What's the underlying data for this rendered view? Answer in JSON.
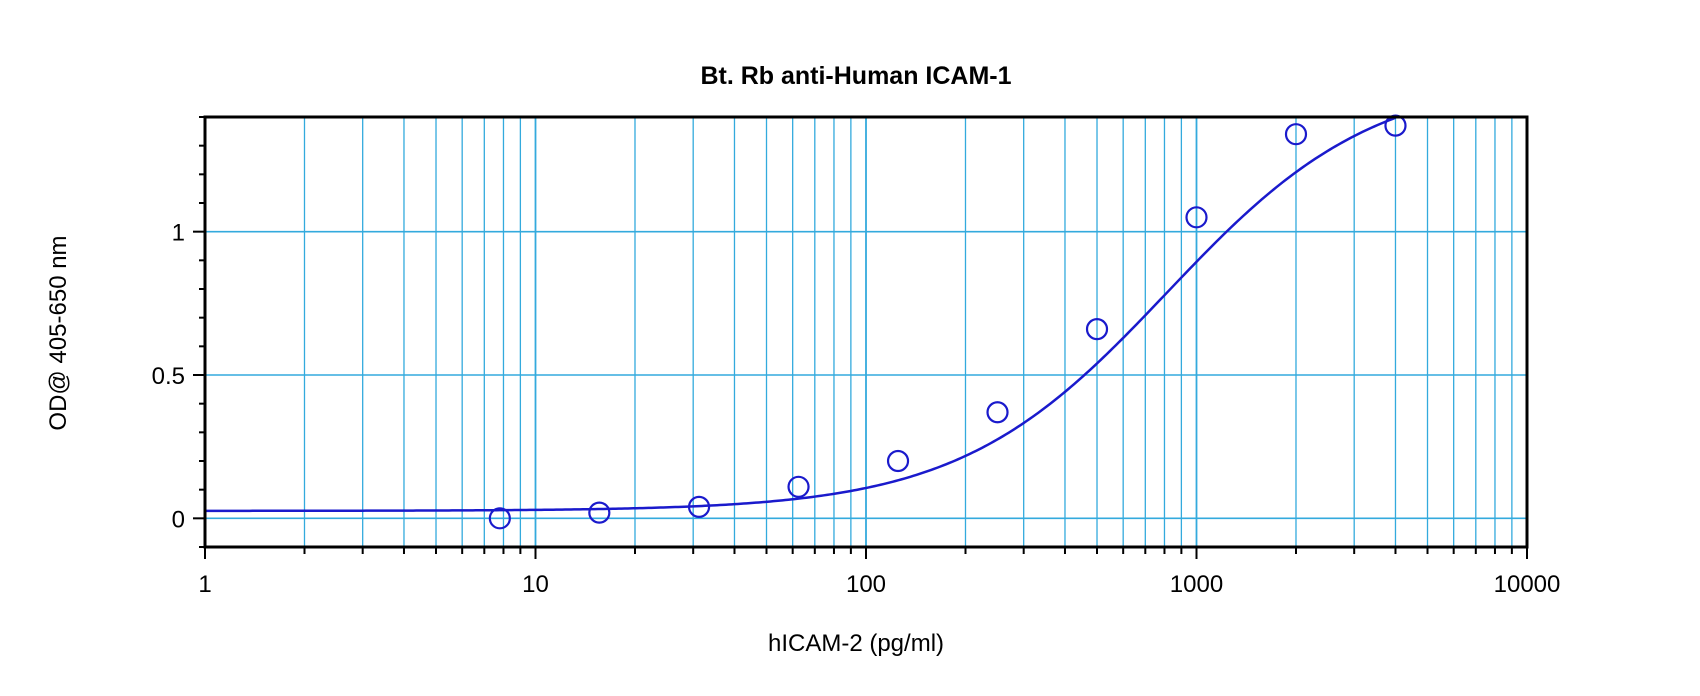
{
  "chart_data": {
    "type": "scatter",
    "title": "Bt. Rb anti-Human ICAM-1",
    "xlabel": "hICAM-2 (pg/ml)",
    "ylabel": "OD@ 405-650 nm",
    "x_scale": "log",
    "xlim": [
      1,
      10000
    ],
    "ylim": [
      -0.1,
      1.4
    ],
    "x_ticks": [
      1,
      10,
      100,
      1000,
      10000
    ],
    "x_tick_labels": [
      "1",
      "10",
      "100",
      "1000",
      "10000"
    ],
    "y_ticks": [
      0,
      0.5,
      1
    ],
    "y_tick_labels": [
      "0",
      "0.5",
      "1"
    ],
    "grid": true,
    "points": {
      "x": [
        7.8,
        15.6,
        31.25,
        62.5,
        125,
        250,
        500,
        1000,
        2000,
        4000
      ],
      "y": [
        0.0,
        0.02,
        0.04,
        0.11,
        0.2,
        0.37,
        0.66,
        1.05,
        1.34,
        1.37
      ]
    },
    "fit_curve": {
      "type": "4PL",
      "bottom": 0.026,
      "top": 1.55,
      "ec50": 815,
      "hill": 1.38
    },
    "colors": {
      "series": "#1a1acc",
      "grid": "#33aadd",
      "frame": "#000000"
    }
  }
}
